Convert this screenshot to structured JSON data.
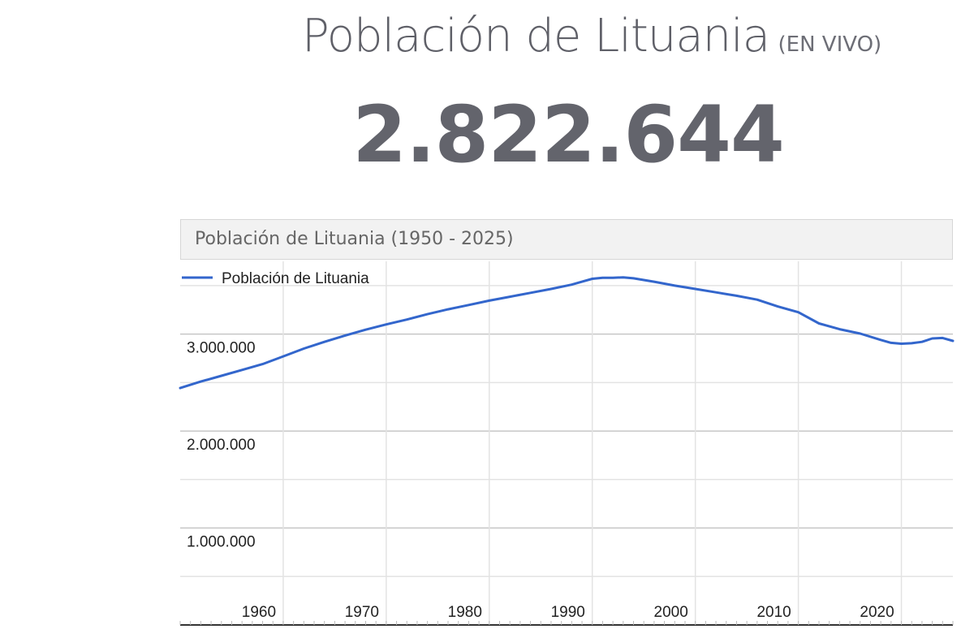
{
  "header": {
    "title": "Población de Lituania",
    "live_tag": "(EN VIVO)",
    "counter": "2.822.644"
  },
  "colors": {
    "line": "#3366cc",
    "grid": "#e3e3e3",
    "major_grid": "#c6c6c6"
  },
  "chart_data": {
    "type": "line",
    "title": "Población de Lituania (1950 - 2025)",
    "legend": "top-left",
    "xlim": [
      1950,
      2025
    ],
    "ylim": [
      0,
      3750000
    ],
    "y_ticks": [
      {
        "value": 1000000,
        "label": "1.000.000"
      },
      {
        "value": 2000000,
        "label": "2.000.000"
      },
      {
        "value": 3000000,
        "label": "3.000.000"
      }
    ],
    "x_ticks": [
      {
        "value": 1960,
        "label": "1960"
      },
      {
        "value": 1970,
        "label": "1970"
      },
      {
        "value": 1980,
        "label": "1980"
      },
      {
        "value": 1990,
        "label": "1990"
      },
      {
        "value": 2000,
        "label": "2000"
      },
      {
        "value": 2010,
        "label": "2010"
      },
      {
        "value": 2020,
        "label": "2020"
      }
    ],
    "series": [
      {
        "name": "Población de Lituania",
        "x": [
          1950,
          1952,
          1954,
          1956,
          1958,
          1960,
          1962,
          1964,
          1966,
          1968,
          1970,
          1972,
          1974,
          1976,
          1978,
          1980,
          1982,
          1984,
          1986,
          1988,
          1989,
          1990,
          1991,
          1992,
          1993,
          1994,
          1996,
          1998,
          2000,
          2002,
          2004,
          2006,
          2008,
          2010,
          2012,
          2014,
          2016,
          2018,
          2019,
          2020,
          2021,
          2022,
          2023,
          2024,
          2025
        ],
        "values": [
          2443000,
          2510000,
          2570000,
          2630000,
          2690000,
          2770000,
          2850000,
          2920000,
          2985000,
          3045000,
          3100000,
          3150000,
          3205000,
          3255000,
          3300000,
          3345000,
          3385000,
          3425000,
          3465000,
          3510000,
          3540000,
          3570000,
          3580000,
          3580000,
          3585000,
          3575000,
          3540000,
          3500000,
          3465000,
          3430000,
          3395000,
          3355000,
          3285000,
          3225000,
          3110000,
          3050000,
          3005000,
          2940000,
          2910000,
          2900000,
          2905000,
          2920000,
          2955000,
          2960000,
          2930000
        ]
      }
    ]
  }
}
